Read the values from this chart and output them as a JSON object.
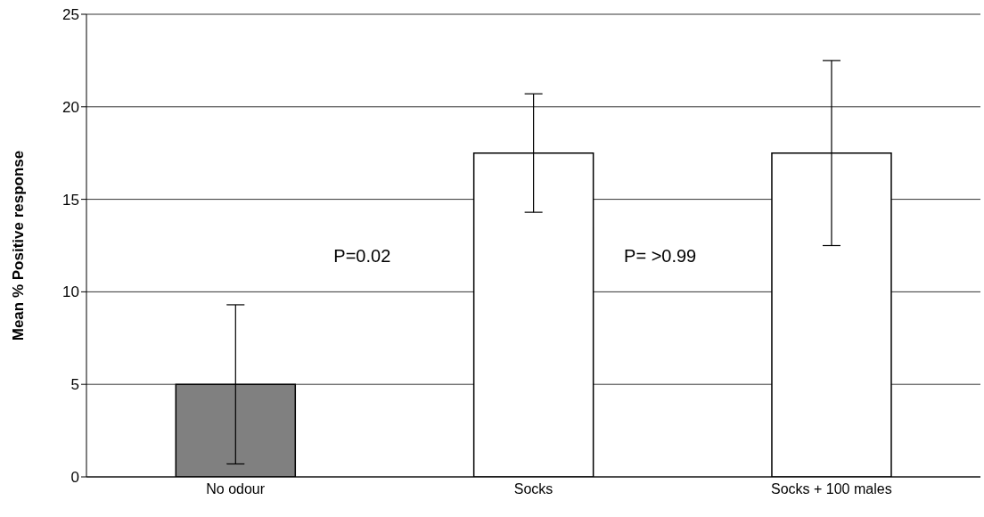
{
  "chart_data": {
    "type": "bar",
    "ylabel": "Mean % Positive response",
    "categories": [
      "No odour",
      "Socks",
      "Socks + 100 males"
    ],
    "values": [
      5,
      17.5,
      17.5
    ],
    "colors": [
      "#808080",
      "#ffffff",
      "#ffffff"
    ],
    "errors": [
      4.3,
      3.2,
      5
    ],
    "ylim": [
      0,
      25
    ],
    "yticks": [
      0,
      5,
      10,
      15,
      20,
      25
    ],
    "grid": "y",
    "annotations": [
      "P=0.02",
      "P= >0.99"
    ]
  }
}
